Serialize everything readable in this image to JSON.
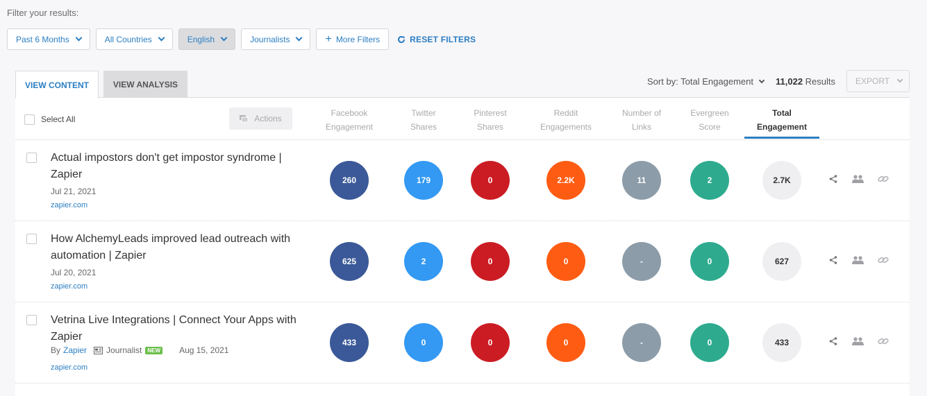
{
  "filter_label": "Filter your results:",
  "filters": {
    "time": "Past 6 Months",
    "country": "All Countries",
    "language": "English",
    "type": "Journalists",
    "more": "More Filters",
    "reset": "RESET FILTERS"
  },
  "tabs": {
    "content": "VIEW CONTENT",
    "analysis": "VIEW ANALYSIS"
  },
  "sort": {
    "label": "Sort by: Total Engagement",
    "count": "11,022",
    "results_word": "Results",
    "export": "EXPORT"
  },
  "table": {
    "select_all": "Select All",
    "actions": "Actions",
    "columns": [
      {
        "line1": "Facebook",
        "line2": "Engagement"
      },
      {
        "line1": "Twitter",
        "line2": "Shares"
      },
      {
        "line1": "Pinterest",
        "line2": "Shares"
      },
      {
        "line1": "Reddit",
        "line2": "Engagements"
      },
      {
        "line1": "Number of",
        "line2": "Links"
      },
      {
        "line1": "Evergreen",
        "line2": "Score"
      },
      {
        "line1": "Total",
        "line2": "Engagement"
      }
    ]
  },
  "rows": [
    {
      "title": "Actual impostors don't get impostor syndrome | Zapier",
      "date": "Jul 21, 2021",
      "domain": "zapier.com",
      "facebook": "260",
      "twitter": "179",
      "pinterest": "0",
      "reddit": "2.2K",
      "links": "11",
      "evergreen": "2",
      "total": "2.7K"
    },
    {
      "title": "How AlchemyLeads improved lead outreach with automation | Zapier",
      "date": "Jul 20, 2021",
      "domain": "zapier.com",
      "facebook": "625",
      "twitter": "2",
      "pinterest": "0",
      "reddit": "0",
      "links": "-",
      "evergreen": "0",
      "total": "627"
    },
    {
      "title": "Vetrina Live Integrations | Connect Your Apps with Zapier",
      "by": "By",
      "author": "Zapier",
      "author_type": "Journalist",
      "badge": "NEW",
      "date": "Aug 15, 2021",
      "domain": "zapier.com",
      "facebook": "433",
      "twitter": "0",
      "pinterest": "0",
      "reddit": "0",
      "links": "-",
      "evergreen": "0",
      "total": "433"
    }
  ],
  "colors": {
    "accent": "#2b7ec2",
    "facebook": "#3b5998",
    "twitter": "#3399f3",
    "pinterest": "#cb1c24",
    "reddit": "#fe5c13",
    "links": "#8c9ca9",
    "evergreen": "#2eab8f"
  }
}
